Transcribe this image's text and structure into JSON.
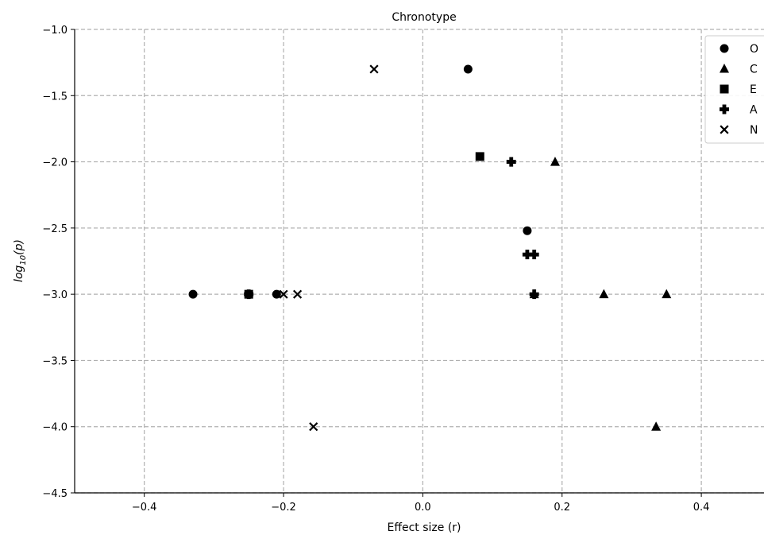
{
  "chart_data": {
    "type": "scatter",
    "title": "Chronotype",
    "xlabel": "Effect size (r)",
    "ylabel_base": "log",
    "ylabel_sub": "10",
    "ylabel_arg": "(p)",
    "xlim": [
      -0.5,
      0.49
    ],
    "ylim": [
      -4.5,
      -1.0
    ],
    "xticks": [
      -0.4,
      -0.2,
      0.0,
      0.2,
      0.4
    ],
    "xtick_labels": [
      "−0.4",
      "−0.2",
      "0.0",
      "0.2",
      "0.4"
    ],
    "yticks": [
      -1.0,
      -1.5,
      -2.0,
      -2.5,
      -3.0,
      -3.5,
      -4.0,
      -4.5
    ],
    "ytick_labels": [
      "−1.0",
      "−1.5",
      "−2.0",
      "−2.5",
      "−3.0",
      "−3.5",
      "−4.0",
      "−4.5"
    ],
    "grid": true,
    "legend_position": "top-right",
    "series": [
      {
        "name": "O",
        "marker": "circle",
        "points": [
          [
            0.065,
            -1.3
          ],
          [
            0.15,
            -2.52
          ],
          [
            -0.33,
            -3.0
          ],
          [
            -0.21,
            -3.0
          ]
        ]
      },
      {
        "name": "C",
        "marker": "triangle",
        "points": [
          [
            0.19,
            -2.0
          ],
          [
            0.16,
            -3.0
          ],
          [
            0.26,
            -3.0
          ],
          [
            0.35,
            -3.0
          ],
          [
            0.335,
            -4.0
          ]
        ]
      },
      {
        "name": "E",
        "marker": "square",
        "points": [
          [
            0.082,
            -1.96
          ],
          [
            -0.25,
            -3.0
          ]
        ]
      },
      {
        "name": "A",
        "marker": "plus",
        "points": [
          [
            0.127,
            -2.0
          ],
          [
            0.15,
            -2.7
          ],
          [
            0.16,
            -2.7
          ],
          [
            0.16,
            -3.0
          ],
          [
            -0.25,
            -3.0
          ]
        ]
      },
      {
        "name": "N",
        "marker": "x",
        "points": [
          [
            -0.07,
            -1.3
          ],
          [
            -0.2,
            -3.0
          ],
          [
            -0.18,
            -3.0
          ],
          [
            -0.157,
            -4.0
          ]
        ]
      }
    ]
  }
}
